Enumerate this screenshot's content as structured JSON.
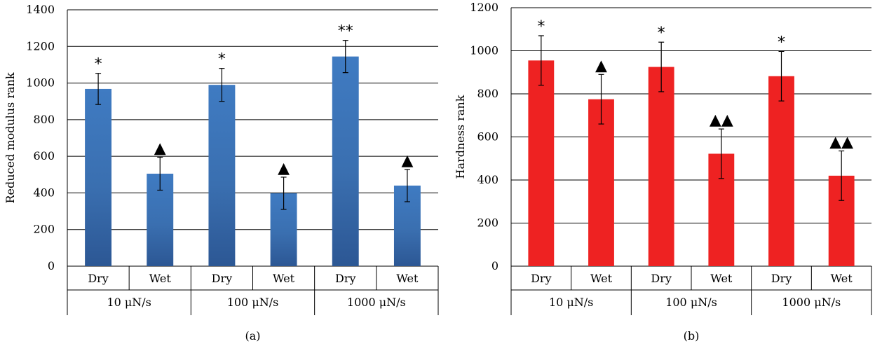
{
  "chart_data": [
    {
      "type": "bar",
      "panel_label": "(a)",
      "ylabel": "Reduced modulus rank",
      "ylim": [
        0,
        1400
      ],
      "yticks": [
        "0",
        "200",
        "400",
        "600",
        "800",
        "1000",
        "1200",
        "1400"
      ],
      "grid": true,
      "categories": [
        "Dry",
        "Wet",
        "Dry",
        "Wet",
        "Dry",
        "Wet"
      ],
      "groups": [
        "10 μN/s",
        "100 μN/s",
        "1000 μN/s"
      ],
      "values": [
        968,
        505,
        990,
        398,
        1145,
        440
      ],
      "errors": [
        85,
        90,
        90,
        88,
        88,
        88
      ],
      "annotations": [
        "*",
        "▲",
        "*",
        "▲",
        "**",
        "▲"
      ],
      "color": "#3d74b8"
    },
    {
      "type": "bar",
      "panel_label": "(b)",
      "ylabel": "Hardness rank",
      "ylim": [
        0,
        1200
      ],
      "yticks": [
        "0",
        "200",
        "400",
        "600",
        "800",
        "1000",
        "1200"
      ],
      "grid": true,
      "categories": [
        "Dry",
        "Wet",
        "Dry",
        "Wet",
        "Dry",
        "Wet"
      ],
      "groups": [
        "10 μN/s",
        "100 μN/s",
        "1000 μN/s"
      ],
      "values": [
        955,
        775,
        925,
        522,
        882,
        420
      ],
      "errors": [
        115,
        115,
        115,
        115,
        115,
        115
      ],
      "annotations": [
        "*",
        "▲",
        "*",
        "▲▲",
        "*",
        "▲▲"
      ],
      "color": "#ee2222"
    }
  ]
}
